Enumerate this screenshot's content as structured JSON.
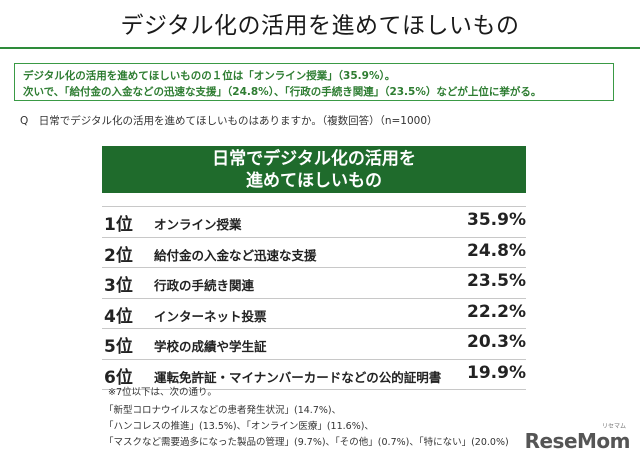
{
  "title": "デジタル化の活用を進めてほしいもの",
  "summary": {
    "line1": "デジタル化の活用を進めてほしいものの１位は「オンライン授業」（35.9%）。",
    "line2": "次いで、「給付金の入金などの迅速な支援」（24.8%）、「行政の手続き関連」（23.5%）などが上位に挙がる。"
  },
  "question": "Q　日常でデジタル化の活用を進めてほしいものはありますか。（複数回答）（n=1000）",
  "table": {
    "header_line1": "日常でデジタル化の活用を",
    "header_line2": "進めてほしいもの",
    "rows": [
      {
        "rank": "1位",
        "item": "オンライン授業",
        "pct": "35.9%"
      },
      {
        "rank": "2位",
        "item": "給付金の入金など迅速な支援",
        "pct": "24.8%"
      },
      {
        "rank": "3位",
        "item": "行政の手続き関連",
        "pct": "23.5%"
      },
      {
        "rank": "4位",
        "item": "インターネット投票",
        "pct": "22.2%"
      },
      {
        "rank": "5位",
        "item": "学校の成績や学生証",
        "pct": "20.3%"
      },
      {
        "rank": "6位",
        "item": "運転免許証・マイナンバーカードなどの公的証明書",
        "pct": "19.9%"
      }
    ]
  },
  "notes": {
    "head": "※7位以下は、次の通り。",
    "line1": "「新型コロナウイルスなどの患者発生状況」(14.7%)、",
    "line2": "「ハンコレスの推進」(13.5%)、「オンライン医療」(11.6%)、",
    "line3": "「マスクなど需要過多になった製品の管理」(9.7%)、「その他」(0.7%)、「特にない」(20.0%)"
  },
  "logo": {
    "text": "ReseMom",
    "sub": "リセマム"
  },
  "colors": {
    "accent": "#2e8b3a",
    "header_bg": "#1f6b2c",
    "summary_text": "#2e7d32"
  }
}
